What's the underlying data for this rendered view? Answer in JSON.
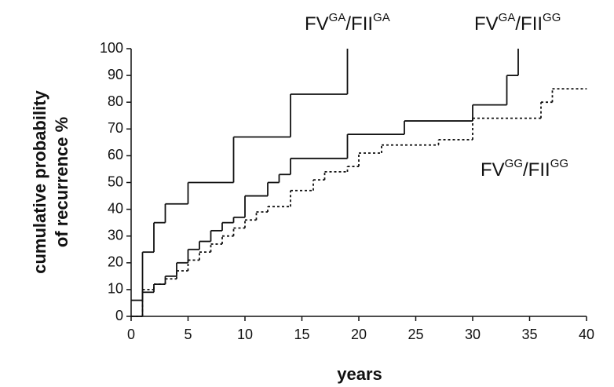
{
  "chart_data": {
    "type": "line",
    "step": "post",
    "xlabel": "years",
    "ylabel": [
      "cumulative probability",
      "of recurrence %"
    ],
    "xlim": [
      0,
      40
    ],
    "xticks": [
      0,
      5,
      10,
      15,
      20,
      25,
      30,
      35,
      40
    ],
    "ylim": [
      0,
      100
    ],
    "yticks": [
      0,
      10,
      20,
      30,
      40,
      50,
      60,
      70,
      80,
      90,
      100
    ],
    "grid": false,
    "series": [
      {
        "label": [
          {
            "text": "FV"
          },
          {
            "text": "GA",
            "sup": true
          },
          {
            "text": "/FII"
          },
          {
            "text": "GA",
            "sup": true
          }
        ],
        "color": "#111111",
        "dash": false,
        "x": [
          0,
          1,
          2,
          3,
          5,
          9,
          14,
          19
        ],
        "values": [
          6,
          24,
          35,
          42,
          50,
          67,
          83,
          100
        ]
      },
      {
        "label": [
          {
            "text": "FV"
          },
          {
            "text": "GA",
            "sup": true
          },
          {
            "text": "/FII"
          },
          {
            "text": "GG",
            "sup": true
          }
        ],
        "color": "#111111",
        "dash": false,
        "x": [
          0,
          1,
          2,
          3,
          4,
          5,
          6,
          7,
          8,
          9,
          10,
          12,
          13,
          14,
          19,
          24,
          30,
          33,
          34
        ],
        "values": [
          0,
          9,
          12,
          15,
          20,
          25,
          28,
          32,
          35,
          37,
          45,
          50,
          53,
          59,
          68,
          73,
          79,
          90,
          100
        ]
      },
      {
        "label": [
          {
            "text": "FV"
          },
          {
            "text": "GG",
            "sup": true
          },
          {
            "text": "/FII"
          },
          {
            "text": "GG",
            "sup": true
          }
        ],
        "color": "#111111",
        "dash": true,
        "x": [
          0,
          1,
          2,
          3,
          4,
          5,
          6,
          7,
          8,
          9,
          10,
          11,
          12,
          14,
          16,
          17,
          19,
          20,
          22,
          27,
          30,
          36,
          37,
          40
        ],
        "values": [
          0,
          10,
          12,
          14,
          17,
          21,
          24,
          27,
          30,
          33,
          36,
          39,
          41,
          47,
          51,
          54,
          56,
          61,
          64,
          66,
          74,
          80,
          85,
          85
        ]
      }
    ]
  }
}
